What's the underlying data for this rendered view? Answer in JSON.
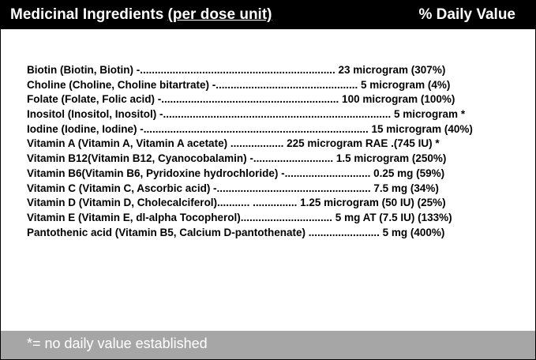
{
  "header": {
    "title": "Medicinal Ingredients",
    "title_qualifier": "(per dose unit)",
    "right_label": "% Daily Value"
  },
  "ingredients": [
    "Biotin (Biotin, Biotin) -.................................................................. 23 microgram (307%)",
    "Choline (Choline, Choline bitartrate) -................................................ 5 microgram (4%)",
    "Folate (Folate, Folic acid) -............................................................ 100 microgram (100%)",
    "Inositol (Inositol, Inositol) -............................................................................. 5 microgram *",
    "Iodine (Iodine, Iodine) -............................................................................ 15 microgram (40%)",
    "Vitamin A (Vitamin A, Vitamin A acetate) .................. 225 microgram RAE .(745 IU) *",
    "Vitamin B12(Vitamin B12, Cyanocobalamin) -........................... 1.5 microgram (250%)",
    "Vitamin B6(Vitamin B6, Pyridoxine hydrochloride) -............................. 0.25 mg (59%)",
    "Vitamin C (Vitamin C, Ascorbic acid) -.................................................... 7.5 mg (34%)",
    "Vitamin D (Vitamin D, Cholecalciferol)........... ............... 1.25 microgram (50 IU) (25%)",
    "Vitamin E (Vitamin E, dl-alpha Tocopherol)............................... 5 mg AT (7.5 IU) (133%)",
    "Pantothenic acid (Vitamin B5, Calcium D-pantothenate) ........................ 5 mg (400%)"
  ],
  "footer": {
    "note": "*= no daily value established"
  },
  "colors": {
    "header_bg": "#000000",
    "header_text": "#ffffff",
    "footer_bg": "#a6a6a6",
    "footer_text": "#ffffff"
  }
}
